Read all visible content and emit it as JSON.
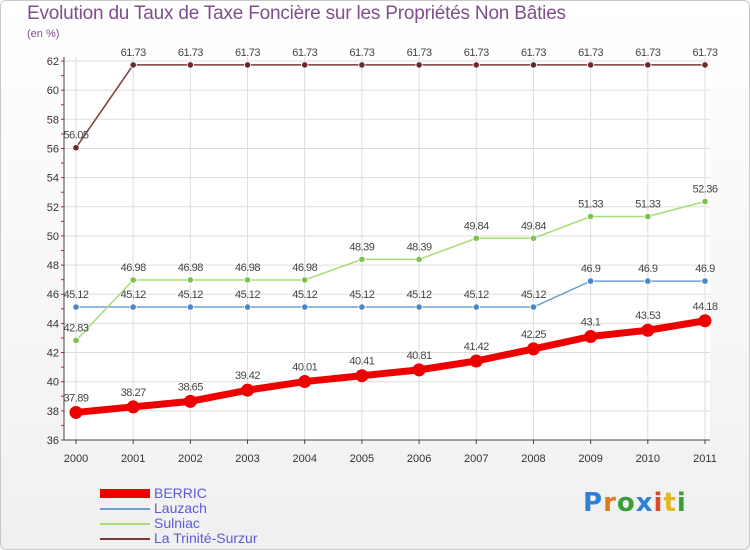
{
  "title": "Evolution du Taux de Taxe Foncière sur les Propriétés Non Bâties",
  "unit_label": "(en %)",
  "logo": {
    "text": "Proxiti",
    "letter_colors": [
      "#2f7fd6",
      "#e07a1f",
      "#3a9e3a",
      "#2f7fd6",
      "#d64a2f",
      "#e0b81f",
      "#3a9e3a"
    ]
  },
  "chart_data": {
    "type": "line",
    "categories": [
      "2000",
      "2001",
      "2002",
      "2003",
      "2004",
      "2005",
      "2006",
      "2007",
      "2008",
      "2009",
      "2010",
      "2011"
    ],
    "ylim": [
      36,
      62
    ],
    "yticks": [
      36,
      38,
      40,
      42,
      44,
      46,
      48,
      50,
      52,
      54,
      56,
      58,
      60,
      62
    ],
    "grid": true,
    "legend_position": "bottom-left",
    "series": [
      {
        "name": "BERRIC",
        "color": "#ee0000",
        "style": "thick",
        "values": [
          37.89,
          38.27,
          38.65,
          39.42,
          40.01,
          40.41,
          40.81,
          41.42,
          42.25,
          43.1,
          43.53,
          44.18
        ],
        "labels": [
          "37.89",
          "38.27",
          "38.65",
          "39.42",
          "40.01",
          "40.41",
          "40.81",
          "41.42",
          "42.25",
          "43.1",
          "43.53",
          "44.18"
        ]
      },
      {
        "name": "Lauzach",
        "color": "#6fa0cf",
        "marker": "#4a86c5",
        "style": "thin",
        "values": [
          45.12,
          45.12,
          45.12,
          45.12,
          45.12,
          45.12,
          45.12,
          45.12,
          45.12,
          46.9,
          46.9,
          46.9
        ],
        "labels": [
          "45.12",
          "45.12",
          "45.12",
          "45.12",
          "45.12",
          "45.12",
          "45.12",
          "45.12",
          "45.12",
          "46.9",
          "46.9",
          "46.9"
        ]
      },
      {
        "name": "Sulniac",
        "color": "#a6dd77",
        "marker": "#7cc34a",
        "style": "thin",
        "values": [
          42.83,
          46.98,
          46.98,
          46.98,
          46.98,
          48.39,
          48.39,
          49.84,
          49.84,
          51.33,
          51.33,
          52.36
        ],
        "labels": [
          "42.83",
          "46.98",
          "46.98",
          "46.98",
          "46.98",
          "48.39",
          "48.39",
          "49.84",
          "49.84",
          "51.33",
          "51.33",
          "52.36"
        ]
      },
      {
        "name": "La Trinité-Surzur",
        "color": "#7a3a3a",
        "marker": "#6b2a2a",
        "style": "thin",
        "values": [
          56.05,
          61.73,
          61.73,
          61.73,
          61.73,
          61.73,
          61.73,
          61.73,
          61.73,
          61.73,
          61.73,
          61.73
        ],
        "labels": [
          "56.05",
          "61.73",
          "61.73",
          "61.73",
          "61.73",
          "61.73",
          "61.73",
          "61.73",
          "61.73",
          "61.73",
          "61.73",
          "61.73"
        ]
      }
    ]
  }
}
